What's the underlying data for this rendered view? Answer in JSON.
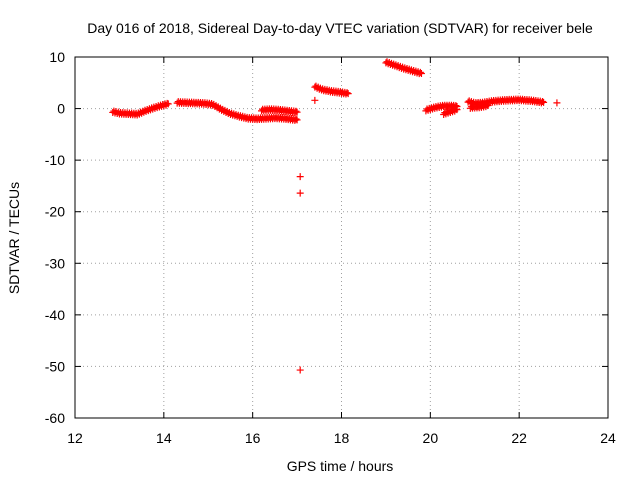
{
  "chart_data": {
    "type": "scatter",
    "title": "Day 016 of 2018, Sidereal Day-to-day VTEC variation (SDTVAR) for receiver bele",
    "xlabel": "GPS time / hours",
    "ylabel": "SDTVAR / TECUs",
    "xlim": [
      12,
      24
    ],
    "ylim": [
      -60,
      10
    ],
    "xticks": [
      12,
      14,
      16,
      18,
      20,
      22,
      24
    ],
    "yticks": [
      10,
      0,
      -10,
      -20,
      -30,
      -40,
      -50,
      -60
    ],
    "xtick_labels": [
      "12",
      "14",
      "16",
      "18",
      "20",
      "22",
      "24"
    ],
    "ytick_labels": [
      "10",
      "0",
      "-10",
      "-20",
      "-30",
      "-40",
      "-50",
      "-60"
    ],
    "grid": true,
    "marker": "+",
    "color": "#ff0000",
    "curve_segments": [
      {
        "name": "arc-1",
        "points": [
          [
            12.85,
            -0.6
          ],
          [
            13.0,
            -0.9
          ],
          [
            13.2,
            -1.0
          ],
          [
            13.4,
            -1.1
          ],
          [
            13.6,
            -0.4
          ],
          [
            13.8,
            0.2
          ],
          [
            14.0,
            0.7
          ],
          [
            14.1,
            0.9
          ]
        ]
      },
      {
        "name": "arc-2",
        "points": [
          [
            14.3,
            1.2
          ],
          [
            14.6,
            1.1
          ],
          [
            14.9,
            1.0
          ],
          [
            15.1,
            0.8
          ],
          [
            15.3,
            -0.2
          ],
          [
            15.5,
            -1.0
          ],
          [
            15.7,
            -1.5
          ],
          [
            15.9,
            -1.9
          ],
          [
            16.1,
            -2.0
          ],
          [
            16.3,
            -1.9
          ],
          [
            16.5,
            -1.8
          ],
          [
            16.7,
            -1.9
          ],
          [
            16.9,
            -2.1
          ],
          [
            17.0,
            -2.2
          ]
        ]
      },
      {
        "name": "arc-2-upper",
        "points": [
          [
            16.2,
            -0.3
          ],
          [
            16.4,
            -0.2
          ],
          [
            16.6,
            -0.3
          ],
          [
            16.8,
            -0.5
          ],
          [
            17.0,
            -0.7
          ]
        ]
      },
      {
        "name": "arc-3",
        "points": [
          [
            17.4,
            4.3
          ],
          [
            17.5,
            3.9
          ],
          [
            17.6,
            3.6
          ],
          [
            17.8,
            3.3
          ],
          [
            18.0,
            3.1
          ],
          [
            18.15,
            2.9
          ]
        ]
      },
      {
        "name": "arc-4",
        "points": [
          [
            19.0,
            9.0
          ],
          [
            19.2,
            8.4
          ],
          [
            19.4,
            7.8
          ],
          [
            19.6,
            7.3
          ],
          [
            19.8,
            6.8
          ]
        ]
      },
      {
        "name": "arc-5",
        "points": [
          [
            19.9,
            -0.3
          ],
          [
            20.1,
            0.2
          ],
          [
            20.3,
            0.5
          ],
          [
            20.5,
            0.5
          ],
          [
            20.6,
            0.4
          ]
        ]
      },
      {
        "name": "arc-5-lower",
        "points": [
          [
            20.3,
            -1.0
          ],
          [
            20.45,
            -0.6
          ],
          [
            20.6,
            -0.2
          ]
        ]
      },
      {
        "name": "arc-6",
        "points": [
          [
            20.85,
            1.4
          ],
          [
            21.0,
            1.0
          ],
          [
            21.2,
            1.1
          ],
          [
            21.4,
            1.4
          ],
          [
            21.7,
            1.6
          ],
          [
            22.0,
            1.7
          ],
          [
            22.3,
            1.5
          ],
          [
            22.55,
            1.2
          ]
        ]
      },
      {
        "name": "arc-6-lower",
        "points": [
          [
            20.9,
            0.2
          ],
          [
            21.1,
            0.3
          ],
          [
            21.3,
            0.6
          ]
        ]
      }
    ],
    "outliers": [
      [
        17.4,
        1.6
      ],
      [
        17.07,
        -13.2
      ],
      [
        17.07,
        -16.4
      ],
      [
        17.07,
        -50.7
      ],
      [
        22.85,
        1.1
      ]
    ]
  }
}
